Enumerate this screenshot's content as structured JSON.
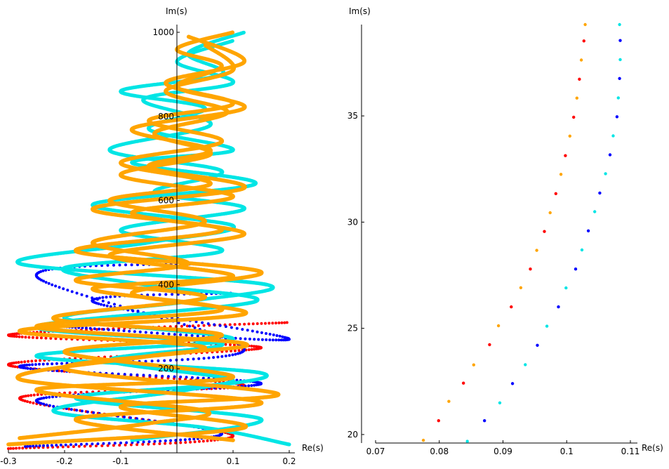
{
  "chart_data": [
    {
      "type": "scatter",
      "xlabel": "Re(s)",
      "ylabel": "Im(s)",
      "xlim": [
        -0.3,
        0.2
      ],
      "ylim": [
        0,
        1010
      ],
      "xticks": [
        "-0.3",
        "-0.2",
        "-0.1",
        "0.1",
        "0.2"
      ],
      "yticks": [
        "200",
        "400",
        "600",
        "800",
        "1000"
      ],
      "grid": false,
      "series_colors": {
        "orange": "#ffa500",
        "red": "#ff0000",
        "blue": "#0000ff",
        "cyan": "#00e5e5"
      },
      "curves": [
        {
          "color": "orange",
          "points": [
            [
              -0.28,
              35
            ],
            [
              -0.05,
              70
            ],
            [
              0.05,
              100
            ],
            [
              -0.25,
              150
            ],
            [
              0.1,
              180
            ],
            [
              -0.2,
              240
            ],
            [
              0.08,
              280
            ],
            [
              -0.22,
              320
            ],
            [
              0.05,
              370
            ],
            [
              -0.18,
              410
            ],
            [
              0.02,
              450
            ],
            [
              -0.15,
              500
            ],
            [
              0.05,
              550
            ],
            [
              -0.12,
              600
            ],
            [
              0.06,
              640
            ],
            [
              -0.1,
              690
            ],
            [
              0.08,
              740
            ],
            [
              -0.05,
              790
            ],
            [
              0.1,
              830
            ],
            [
              -0.02,
              880
            ],
            [
              0.12,
              930
            ],
            [
              0.02,
              990
            ]
          ]
        },
        {
          "color": "orange",
          "points": [
            [
              0.1,
              30
            ],
            [
              -0.18,
              80
            ],
            [
              0.15,
              120
            ],
            [
              -0.28,
              175
            ],
            [
              -0.05,
              230
            ],
            [
              0.12,
              260
            ],
            [
              -0.25,
              300
            ],
            [
              0.08,
              340
            ],
            [
              -0.15,
              390
            ],
            [
              0.1,
              420
            ],
            [
              -0.12,
              470
            ],
            [
              0.12,
              520
            ],
            [
              -0.08,
              570
            ],
            [
              0.1,
              610
            ],
            [
              -0.1,
              660
            ],
            [
              0.06,
              710
            ],
            [
              -0.04,
              760
            ],
            [
              0.09,
              810
            ],
            [
              -0.02,
              860
            ],
            [
              0.1,
              910
            ],
            [
              0.05,
              970
            ]
          ]
        },
        {
          "color": "orange",
          "points": [
            [
              -0.3,
              20
            ],
            [
              0.12,
              60
            ],
            [
              -0.1,
              110
            ],
            [
              0.18,
              140
            ],
            [
              -0.2,
              200
            ],
            [
              0.05,
              250
            ],
            [
              -0.28,
              290
            ],
            [
              0.12,
              330
            ],
            [
              -0.08,
              380
            ],
            [
              0.15,
              430
            ],
            [
              -0.18,
              480
            ],
            [
              0.08,
              530
            ],
            [
              -0.15,
              580
            ],
            [
              0.12,
              630
            ],
            [
              -0.05,
              680
            ],
            [
              0.06,
              720
            ],
            [
              -0.08,
              770
            ],
            [
              0.12,
              820
            ],
            [
              0.0,
              870
            ],
            [
              0.08,
              920
            ],
            [
              0.0,
              960
            ],
            [
              0.1,
              1000
            ]
          ]
        },
        {
          "color": "cyan",
          "points": [
            [
              0.2,
              20
            ],
            [
              0.05,
              60
            ],
            [
              -0.22,
              100
            ],
            [
              0.02,
              150
            ],
            [
              0.15,
              190
            ],
            [
              -0.25,
              230
            ],
            [
              0.1,
              270
            ],
            [
              -0.2,
              320
            ],
            [
              0.02,
              360
            ],
            [
              0.16,
              400
            ],
            [
              -0.28,
              450
            ],
            [
              -0.05,
              500
            ],
            [
              0.1,
              540
            ],
            [
              -0.15,
              590
            ],
            [
              0.14,
              640
            ],
            [
              -0.08,
              690
            ],
            [
              0.1,
              720
            ],
            [
              -0.05,
              770
            ],
            [
              0.05,
              820
            ],
            [
              -0.1,
              860
            ],
            [
              0.08,
              900
            ],
            [
              0.02,
              950
            ],
            [
              0.12,
              1000
            ]
          ]
        },
        {
          "color": "cyan",
          "points": [
            [
              -0.08,
              30
            ],
            [
              0.15,
              80
            ],
            [
              -0.18,
              130
            ],
            [
              0.1,
              170
            ],
            [
              -0.12,
              220
            ],
            [
              0.08,
              260
            ],
            [
              -0.25,
              300
            ],
            [
              0.14,
              360
            ],
            [
              -0.06,
              400
            ],
            [
              -0.2,
              440
            ],
            [
              0.08,
              480
            ],
            [
              -0.1,
              530
            ],
            [
              0.12,
              580
            ],
            [
              -0.04,
              620
            ],
            [
              0.08,
              670
            ],
            [
              -0.12,
              720
            ],
            [
              0.06,
              780
            ],
            [
              -0.06,
              840
            ],
            [
              0.1,
              880
            ],
            [
              0.0,
              930
            ],
            [
              0.1,
              980
            ]
          ]
        }
      ],
      "bands": [
        {
          "color": "red",
          "points": [
            [
              -0.3,
              10
            ],
            [
              0.1,
              40
            ],
            [
              -0.28,
              130
            ],
            [
              0.12,
              160
            ],
            [
              -0.3,
              210
            ],
            [
              0.15,
              250
            ],
            [
              -0.3,
              280
            ],
            [
              0.2,
              310
            ]
          ]
        },
        {
          "color": "blue",
          "points": [
            [
              -0.27,
              15
            ],
            [
              0.08,
              45
            ],
            [
              -0.25,
              125
            ],
            [
              0.15,
              165
            ],
            [
              -0.28,
              205
            ],
            [
              0.12,
              245
            ],
            [
              -0.25,
              420
            ],
            [
              0.05,
              450
            ]
          ]
        },
        {
          "color": "blue",
          "points": [
            [
              -0.2,
              300
            ],
            [
              0.2,
              270
            ],
            [
              -0.15,
              360
            ],
            [
              0.1,
              380
            ]
          ]
        }
      ]
    },
    {
      "type": "scatter",
      "xlabel": "Re(s)",
      "ylabel": "Im(s)",
      "xlim": [
        0.07,
        0.11
      ],
      "ylim": [
        19.6,
        39.3
      ],
      "xticks": [
        "0.07",
        "0.08",
        "0.09",
        "0.1",
        "0.11"
      ],
      "yticks": [
        "20",
        "25",
        "30",
        "35"
      ],
      "grid": false,
      "series": [
        {
          "color": "#ffa500",
          "points": [
            [
              0.0775,
              19.73
            ],
            [
              0.0815,
              21.56
            ],
            [
              0.0854,
              23.28
            ],
            [
              0.0893,
              25.12
            ],
            [
              0.0928,
              26.91
            ],
            [
              0.0953,
              28.67
            ],
            [
              0.0974,
              30.44
            ],
            [
              0.0991,
              32.25
            ],
            [
              0.1005,
              34.05
            ],
            [
              0.1016,
              35.84
            ],
            [
              0.1023,
              37.63
            ],
            [
              0.1029,
              39.3
            ]
          ]
        },
        {
          "color": "#ff0000",
          "points": [
            [
              0.0799,
              20.65
            ],
            [
              0.0838,
              22.42
            ],
            [
              0.0879,
              24.23
            ],
            [
              0.0913,
              26.01
            ],
            [
              0.0943,
              27.79
            ],
            [
              0.0965,
              29.56
            ],
            [
              0.0983,
              31.34
            ],
            [
              0.0998,
              33.13
            ],
            [
              0.1011,
              34.94
            ],
            [
              0.102,
              36.73
            ],
            [
              0.1027,
              38.53
            ]
          ]
        },
        {
          "color": "#00e5e5",
          "points": [
            [
              0.0844,
              19.68
            ],
            [
              0.0895,
              21.49
            ],
            [
              0.0935,
              23.29
            ],
            [
              0.0969,
              25.1
            ],
            [
              0.0999,
              26.9
            ],
            [
              0.1024,
              28.69
            ],
            [
              0.1044,
              30.49
            ],
            [
              0.1061,
              32.28
            ],
            [
              0.1073,
              34.06
            ],
            [
              0.1081,
              35.85
            ],
            [
              0.1084,
              37.65
            ],
            [
              0.1083,
              39.3
            ]
          ]
        },
        {
          "color": "#0000ff",
          "points": [
            [
              0.0871,
              20.65
            ],
            [
              0.0915,
              22.4
            ],
            [
              0.0954,
              24.2
            ],
            [
              0.0987,
              26.01
            ],
            [
              0.1014,
              27.79
            ],
            [
              0.1034,
              29.59
            ],
            [
              0.1052,
              31.37
            ],
            [
              0.1068,
              33.17
            ],
            [
              0.1079,
              34.96
            ],
            [
              0.1083,
              36.76
            ],
            [
              0.1084,
              38.55
            ]
          ]
        }
      ]
    }
  ]
}
